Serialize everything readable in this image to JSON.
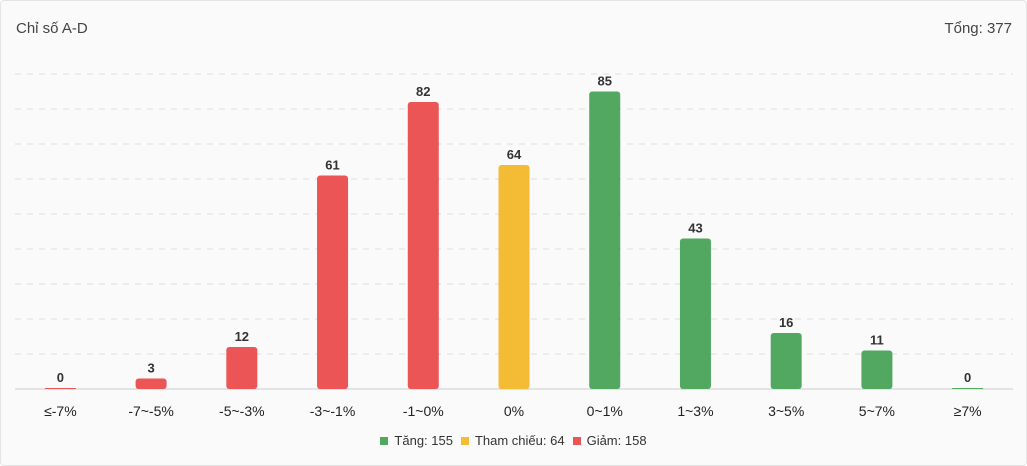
{
  "header": {
    "title": "Chỉ số A-D",
    "total_label": "Tổng: 377"
  },
  "colors": {
    "up": "#52a860",
    "ref": "#f4bb34",
    "down": "#eb5556",
    "grid": "#dddddd",
    "axis": "#cccccc"
  },
  "legend": [
    {
      "label": "Tăng: 155",
      "color": "#52a860"
    },
    {
      "label": "Tham chiếu: 64",
      "color": "#f4bb34"
    },
    {
      "label": "Giảm: 158",
      "color": "#eb5556"
    }
  ],
  "chart_data": {
    "type": "bar",
    "categories": [
      "≤-7%",
      "-7~-5%",
      "-5~-3%",
      "-3~-1%",
      "-1~0%",
      "0%",
      "0~1%",
      "1~3%",
      "3~5%",
      "5~7%",
      "≥7%"
    ],
    "values": [
      0,
      3,
      12,
      61,
      82,
      64,
      85,
      43,
      16,
      11,
      0
    ],
    "bar_colors": [
      "down",
      "down",
      "down",
      "down",
      "down",
      "ref",
      "up",
      "up",
      "up",
      "up",
      "up"
    ],
    "ylim": [
      0,
      90
    ],
    "grid": true,
    "data_labels": true,
    "legend_position": "bottom"
  }
}
